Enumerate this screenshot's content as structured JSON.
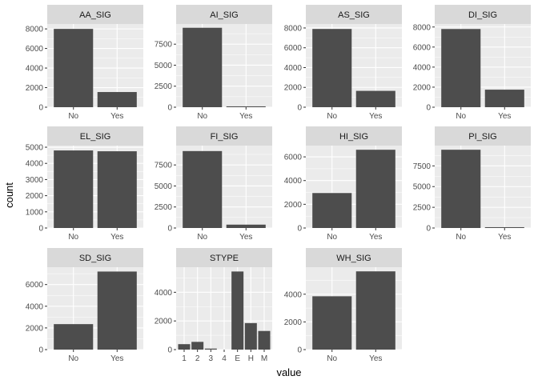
{
  "chart_data": {
    "type": "bar",
    "layout": "faceted grid, 4 columns x 3 rows, free scales",
    "xlabel": "value",
    "ylabel": "count",
    "colors": {
      "bar": "#4d4d4d",
      "panel_background": "#ebebeb",
      "strip_background": "#d9d9d9",
      "grid": "#ffffff"
    },
    "grid": true,
    "legend": "none",
    "facets": [
      {
        "title": "AA_SIG",
        "categories": [
          "No",
          "Yes"
        ],
        "values": [
          8000,
          1550
        ],
        "ylim": [
          0,
          8500
        ],
        "yticks": [
          0,
          2000,
          4000,
          6000,
          8000
        ]
      },
      {
        "title": "AI_SIG",
        "categories": [
          "No",
          "Yes"
        ],
        "values": [
          9450,
          100
        ],
        "ylim": [
          0,
          9900
        ],
        "yticks": [
          0,
          2500,
          5000,
          7500
        ]
      },
      {
        "title": "AS_SIG",
        "categories": [
          "No",
          "Yes"
        ],
        "values": [
          7900,
          1650
        ],
        "ylim": [
          0,
          8400
        ],
        "yticks": [
          0,
          2000,
          4000,
          6000,
          8000
        ]
      },
      {
        "title": "DI_SIG",
        "categories": [
          "No",
          "Yes"
        ],
        "values": [
          7800,
          1750
        ],
        "ylim": [
          0,
          8300
        ],
        "yticks": [
          0,
          2000,
          4000,
          6000,
          8000
        ]
      },
      {
        "title": "EL_SIG",
        "categories": [
          "No",
          "Yes"
        ],
        "values": [
          4800,
          4750
        ],
        "ylim": [
          0,
          5100
        ],
        "yticks": [
          0,
          1000,
          2000,
          3000,
          4000,
          5000
        ]
      },
      {
        "title": "FI_SIG",
        "categories": [
          "No",
          "Yes"
        ],
        "values": [
          9150,
          400
        ],
        "ylim": [
          0,
          9800
        ],
        "yticks": [
          0,
          2500,
          5000,
          7500
        ]
      },
      {
        "title": "HI_SIG",
        "categories": [
          "No",
          "Yes"
        ],
        "values": [
          2950,
          6600
        ],
        "ylim": [
          0,
          6950
        ],
        "yticks": [
          0,
          2000,
          4000,
          6000
        ]
      },
      {
        "title": "PI_SIG",
        "categories": [
          "No",
          "Yes"
        ],
        "values": [
          9450,
          100
        ],
        "ylim": [
          0,
          9950
        ],
        "yticks": [
          0,
          2500,
          5000,
          7500
        ]
      },
      {
        "title": "SD_SIG",
        "categories": [
          "No",
          "Yes"
        ],
        "values": [
          2350,
          7200
        ],
        "ylim": [
          0,
          7600
        ],
        "yticks": [
          0,
          2000,
          4000,
          6000
        ]
      },
      {
        "title": "STYPE",
        "categories": [
          "1",
          "2",
          "3",
          "4",
          "E",
          "H",
          "M"
        ],
        "values": [
          380,
          540,
          70,
          0,
          5450,
          1850,
          1300
        ],
        "ylim": [
          0,
          5750
        ],
        "yticks": [
          0,
          2000,
          4000
        ]
      },
      {
        "title": "WH_SIG",
        "categories": [
          "No",
          "Yes"
        ],
        "values": [
          3850,
          5650
        ],
        "ylim": [
          0,
          5950
        ],
        "yticks": [
          0,
          2000,
          4000
        ]
      }
    ]
  }
}
